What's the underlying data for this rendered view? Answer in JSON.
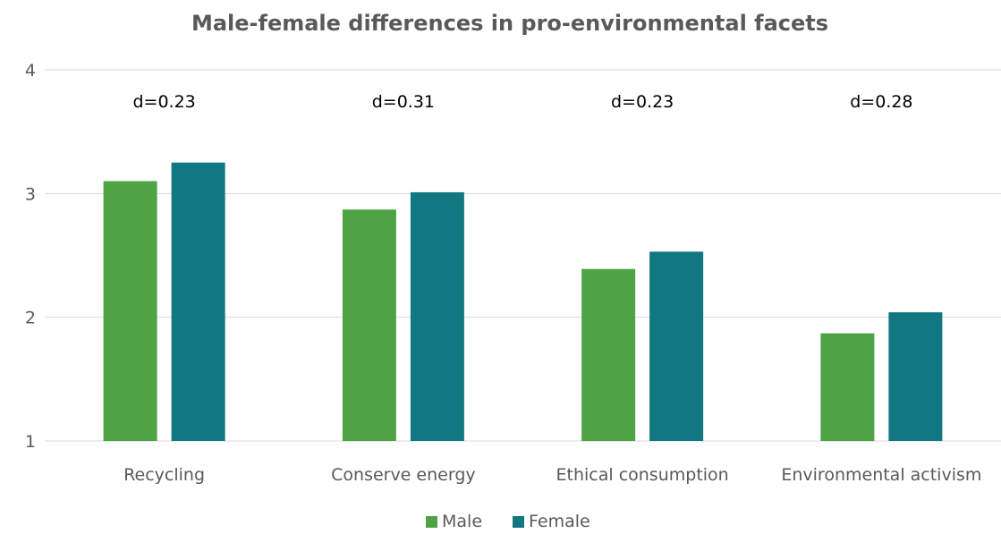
{
  "chart_data": {
    "type": "bar",
    "title": "Male-female differences in pro-environmental facets",
    "xlabel": "",
    "ylabel": "",
    "categories": [
      "Recycling",
      "Conserve energy",
      "Ethical consumption",
      "Environmental activism"
    ],
    "series": [
      {
        "name": "Male",
        "values": [
          3.1,
          2.87,
          2.39,
          1.87
        ],
        "color": "#4ea444"
      },
      {
        "name": "Female",
        "values": [
          3.25,
          3.01,
          2.53,
          2.04
        ],
        "color": "#117781"
      }
    ],
    "annotations": [
      "d=0.23",
      "d=0.31",
      "d=0.23",
      "d=0.28"
    ],
    "ylim": [
      1,
      4
    ],
    "yticks": [
      "1",
      "2",
      "3",
      "4"
    ],
    "grid": true,
    "legend": "bottom"
  }
}
